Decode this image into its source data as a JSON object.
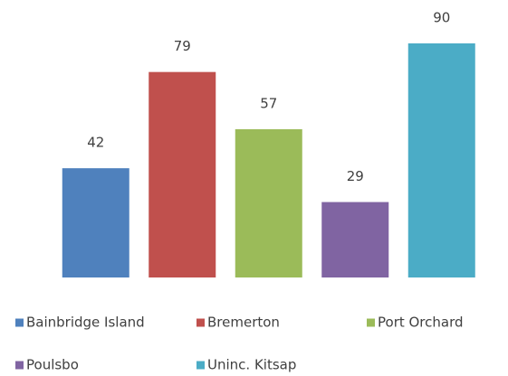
{
  "chart_data": {
    "type": "bar",
    "categories": [
      "Bainbridge Island",
      "Bremerton",
      "Port Orchard",
      "Poulsbo",
      "Uninc. Kitsap"
    ],
    "values": [
      42,
      79,
      57,
      29,
      90
    ],
    "colors": [
      "#4f81bd",
      "#c0504d",
      "#9bbb59",
      "#8064a2",
      "#4bacc6"
    ],
    "legend": "bottom"
  }
}
